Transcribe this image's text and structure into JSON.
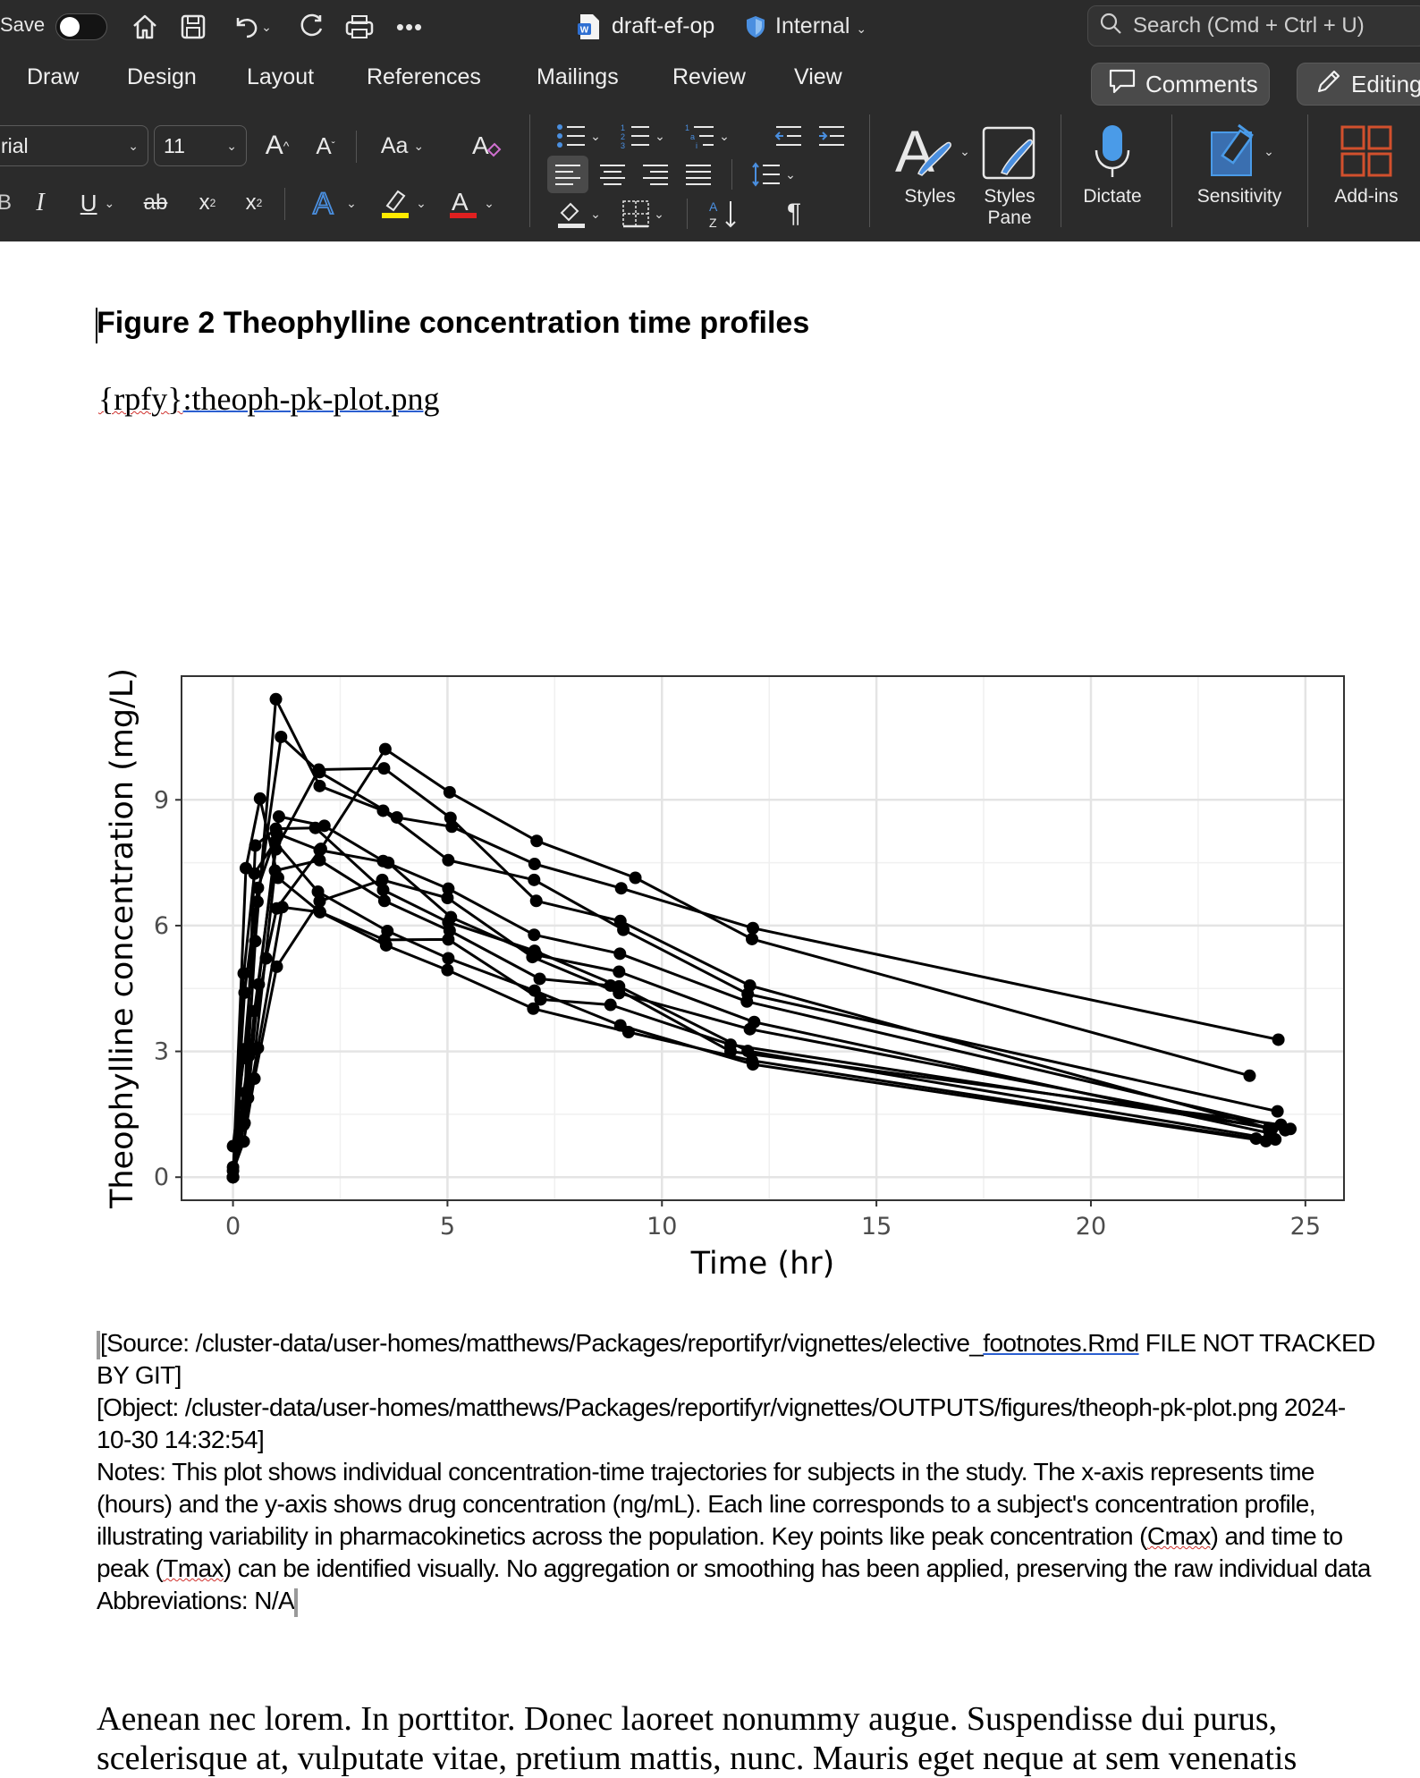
{
  "quick_access": {
    "save_label": "Save",
    "autosave_state": "off",
    "document_name": "draft-ef-op",
    "sensitivity_label": "Internal",
    "search_placeholder": "Search (Cmd + Ctrl + U)"
  },
  "ribbon_tabs": [
    "Draw",
    "Design",
    "Layout",
    "References",
    "Mailings",
    "Review",
    "View"
  ],
  "header_buttons": {
    "comments": "Comments",
    "editing": "Editing"
  },
  "font": {
    "name": "rial",
    "size": "11"
  },
  "groups": {
    "styles": "Styles",
    "styles_pane_1": "Styles",
    "styles_pane_2": "Pane",
    "dictate": "Dictate",
    "sensitivity": "Sensitivity",
    "addins": "Add-ins"
  },
  "icons": [
    "home-icon",
    "save-icon",
    "undo-icon",
    "redo-icon",
    "print-icon",
    "more-icon",
    "word-doc-icon",
    "shield-icon",
    "search-icon",
    "comment-icon",
    "pencil-icon",
    "grow-font-icon",
    "shrink-font-icon",
    "change-case-icon",
    "clear-format-icon",
    "bullets-icon",
    "numbering-icon",
    "multilevel-icon",
    "decrease-indent-icon",
    "increase-indent-icon",
    "align-left-icon",
    "align-center-icon",
    "align-right-icon",
    "justify-icon",
    "line-spacing-icon",
    "shading-icon",
    "borders-icon",
    "sort-icon",
    "pilcrow-icon",
    "styles-icon",
    "styles-pane-icon",
    "microphone-icon",
    "sensitivity-icon",
    "add-ins-icon"
  ],
  "colors": {
    "chrome_bg": "#2b2b2b",
    "highlight": "#ffeb00",
    "font_color": "#e02020",
    "accent_blue": "#4a8fe0"
  },
  "document": {
    "heading": "Figure 2 Theophylline concentration time profiles",
    "field_ref_part1": "{rpfy}",
    "field_ref_part2": ":theoph-pk-plot.png",
    "footnotes": {
      "source_a": "[Source: /cluster-data/user-homes/matthews/Packages/reportifyr/vignettes/elective_",
      "source_link": "footnotes.Rmd",
      "source_b": " FILE NOT TRACKED BY GIT]",
      "object": "[Object: /cluster-data/user-homes/matthews/Packages/reportifyr/vignettes/OUTPUTS/figures/theoph-pk-plot.png 2024-10-30 14:32:54]",
      "notes_a": "Notes: This plot shows individual concentration-time trajectories for subjects in the study. The x-axis represents time (hours",
      "notes_b": ") and the y-axis shows drug concentration (ng/mL). Each line corresponds to a subject's concentration profile, illustrating variability in pharmacokinetics across the population. Key points like peak concentration (",
      "notes_cmax": "Cmax",
      "notes_c": ") and time to peak (",
      "notes_tmax": "Tmax",
      "notes_d": ") can be identified visually. No aggregation or smoothing has been applied, preserving the raw individual data",
      "abbreviations": "Abbreviations: N/A"
    },
    "body_line1": "Aenean nec lorem. In porttitor. Donec laoreet nonummy augue. Suspendisse dui purus,",
    "body_line2": "scelerisque at, vulputate vitae, pretium mattis, nunc. Mauris eget neque at sem venenatis"
  },
  "chart_data": {
    "type": "line",
    "xlabel": "Time (hr)",
    "ylabel": "Theophylline concentration (mg/L)",
    "xlim": [
      -1.2,
      25.9
    ],
    "ylim": [
      -0.55,
      11.95
    ],
    "xticks": [
      0,
      5,
      10,
      15,
      20,
      25
    ],
    "yticks": [
      0,
      3,
      6,
      9
    ],
    "grid": true,
    "markers": true,
    "series": [
      {
        "x": [
          0,
          0.25,
          0.57,
          1.12,
          2.02,
          3.82,
          5.1,
          7.03,
          9.05,
          12.12,
          24.37
        ],
        "y": [
          0.74,
          2.84,
          6.57,
          10.5,
          9.66,
          8.58,
          8.36,
          7.47,
          6.89,
          5.94,
          3.28
        ]
      },
      {
        "x": [
          0,
          0.27,
          0.52,
          1.0,
          1.92,
          3.5,
          5.02,
          7.03,
          9.0,
          12.0,
          24.3
        ],
        "y": [
          0,
          1.72,
          7.91,
          8.31,
          8.33,
          6.85,
          6.08,
          5.4,
          4.55,
          3.01,
          0.9
        ]
      },
      {
        "x": [
          0,
          0.27,
          0.58,
          1.02,
          2.02,
          3.62,
          5.08,
          7.07,
          9.0,
          12.15,
          24.17
        ],
        "y": [
          0,
          4.4,
          6.9,
          8.2,
          7.8,
          7.5,
          6.2,
          5.3,
          4.9,
          3.7,
          1.05
        ]
      },
      {
        "x": [
          0,
          0.35,
          0.6,
          1.07,
          2.13,
          3.5,
          5.02,
          7.02,
          9.02,
          11.98,
          24.65
        ],
        "y": [
          0,
          1.89,
          4.6,
          8.6,
          8.38,
          7.54,
          6.88,
          5.78,
          5.33,
          4.19,
          1.15
        ]
      },
      {
        "x": [
          0,
          0.3,
          0.52,
          1.0,
          2.02,
          3.5,
          5.02,
          7.02,
          9.1,
          12.0,
          24.35
        ],
        "y": [
          0,
          2.02,
          5.63,
          11.4,
          9.33,
          8.74,
          7.56,
          7.09,
          5.9,
          4.37,
          1.57
        ]
      },
      {
        "x": [
          0,
          0.27,
          0.58,
          1.15,
          2.03,
          3.57,
          5.0,
          7.0,
          9.22,
          12.1,
          23.85
        ],
        "y": [
          0,
          1.29,
          3.08,
          6.44,
          6.32,
          5.53,
          4.94,
          4.02,
          3.46,
          2.78,
          0.92
        ]
      },
      {
        "x": [
          0,
          0.25,
          0.5,
          1.02,
          2.02,
          3.48,
          5.0,
          6.98,
          9.0,
          12.05,
          24.22
        ],
        "y": [
          0.15,
          0.85,
          2.35,
          5.02,
          6.58,
          7.09,
          6.66,
          5.25,
          4.39,
          3.53,
          1.15
        ]
      },
      {
        "x": [
          0,
          0.25,
          0.52,
          0.98,
          2.02,
          3.53,
          5.05,
          7.15,
          8.8,
          11.6,
          24.43
        ],
        "y": [
          0,
          3.05,
          3.05,
          7.31,
          7.56,
          6.59,
          5.88,
          4.73,
          4.57,
          3.0,
          1.25
        ]
      },
      {
        "x": [
          0,
          0.3,
          0.63,
          1.05,
          2.02,
          3.53,
          5.02,
          7.17,
          8.8,
          11.6,
          24.53
        ],
        "y": [
          0,
          7.37,
          9.03,
          7.14,
          6.33,
          5.66,
          5.67,
          4.24,
          4.11,
          3.16,
          1.12
        ]
      },
      {
        "x": [
          0,
          0.37,
          0.77,
          1.02,
          2.05,
          3.55,
          5.05,
          7.08,
          9.38,
          12.1,
          23.7
        ],
        "y": [
          0.24,
          2.89,
          5.22,
          6.41,
          7.83,
          10.21,
          9.18,
          8.02,
          7.14,
          5.68,
          2.42
        ]
      },
      {
        "x": [
          0,
          0.25,
          0.5,
          0.98,
          1.98,
          3.6,
          5.02,
          7.03,
          9.03,
          12.12,
          24.08
        ],
        "y": [
          0,
          4.86,
          7.24,
          8.0,
          6.81,
          5.87,
          5.22,
          4.45,
          3.62,
          2.69,
          0.86
        ]
      },
      {
        "x": [
          0,
          0.25,
          0.5,
          1.0,
          2.0,
          3.52,
          5.07,
          7.07,
          9.03,
          12.05,
          24.15
        ],
        "y": [
          0,
          1.25,
          3.96,
          7.82,
          9.72,
          9.75,
          8.57,
          6.59,
          6.11,
          4.57,
          1.17
        ]
      }
    ]
  }
}
